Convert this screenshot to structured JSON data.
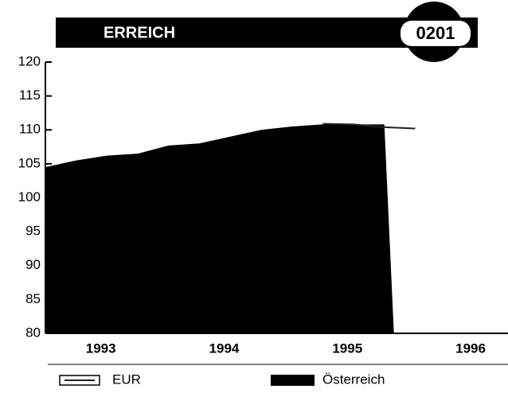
{
  "chart_data": {
    "type": "area",
    "title": "ERREICH",
    "badge": "0201",
    "categories": [
      null,
      "1993",
      null,
      null,
      null,
      "1994",
      null,
      null,
      null,
      "1995",
      null,
      null,
      null,
      "1996",
      null,
      null
    ],
    "series": [
      {
        "name": "EUR",
        "color": "#222222",
        "kind": "line",
        "values": [
          null,
          null,
          null,
          null,
          null,
          null,
          null,
          null,
          null,
          110.9,
          110.8,
          110.4,
          110.2,
          null,
          null,
          null
        ]
      },
      {
        "name": "Österreich",
        "color": "#000000",
        "kind": "area",
        "values": [
          104.5,
          105.5,
          106.2,
          106.5,
          107.7,
          108,
          109,
          110,
          110.5,
          110.8,
          110.8,
          110.8,
          null,
          null,
          null,
          null
        ]
      }
    ],
    "ylim": [
      80,
      120
    ],
    "yticks": [
      80,
      85,
      90,
      95,
      100,
      105,
      110,
      115,
      120
    ]
  }
}
